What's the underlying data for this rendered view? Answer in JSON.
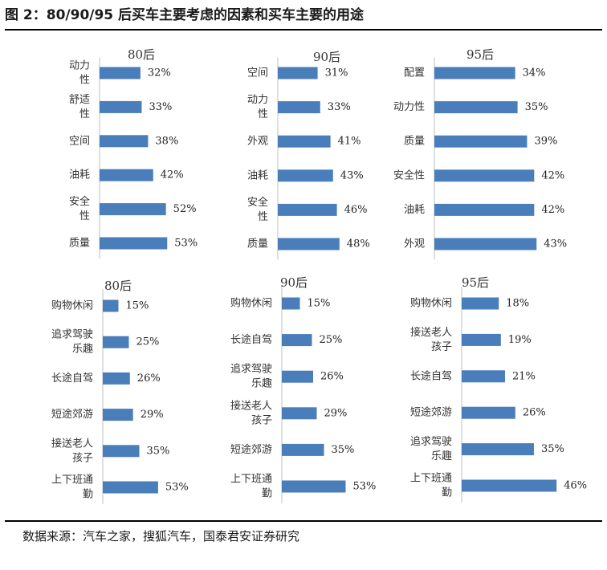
{
  "figure": {
    "title": "图 2：80/90/95 后买车主要考虑的因素和买车主要的用途",
    "source": "数据来源：汽车之家，搜狐汽车，国泰君安证券研究",
    "bar_color": "#4a7ebb"
  },
  "chart_data": [
    {
      "type": "bar",
      "orientation": "horizontal",
      "title": "80后",
      "unit": "%",
      "categories": [
        "动力性",
        "舒适性",
        "空间",
        "油耗",
        "安全性",
        "质量"
      ],
      "values": [
        32,
        33,
        38,
        42,
        52,
        53
      ]
    },
    {
      "type": "bar",
      "orientation": "horizontal",
      "title": "90后",
      "unit": "%",
      "categories": [
        "空间",
        "动力性",
        "外观",
        "油耗",
        "安全性",
        "质量"
      ],
      "values": [
        31,
        33,
        41,
        43,
        46,
        48
      ]
    },
    {
      "type": "bar",
      "orientation": "horizontal",
      "title": "95后",
      "unit": "%",
      "categories": [
        "配置",
        "动力性",
        "质量",
        "安全性",
        "油耗",
        "外观"
      ],
      "values": [
        34,
        35,
        39,
        42,
        42,
        43
      ]
    },
    {
      "type": "bar",
      "orientation": "horizontal",
      "title": "80后",
      "unit": "%",
      "categories": [
        "购物休闲",
        "追求驾驶乐趣",
        "长途自驾",
        "短途郊游",
        "接送老人孩子",
        "上下班通勤"
      ],
      "values": [
        15,
        25,
        26,
        29,
        35,
        53
      ]
    },
    {
      "type": "bar",
      "orientation": "horizontal",
      "title": "90后",
      "unit": "%",
      "categories": [
        "购物休闲",
        "长途自驾",
        "追求驾驶乐趣",
        "接送老人孩子",
        "短途郊游",
        "上下班通勤"
      ],
      "values": [
        15,
        25,
        26,
        29,
        35,
        53
      ]
    },
    {
      "type": "bar",
      "orientation": "horizontal",
      "title": "95后",
      "unit": "%",
      "categories": [
        "购物休闲",
        "接送老人孩子",
        "长途自驾",
        "短途郊游",
        "追求驾驶乐趣",
        "上下班通勤"
      ],
      "values": [
        18,
        19,
        21,
        26,
        35,
        46
      ]
    }
  ]
}
